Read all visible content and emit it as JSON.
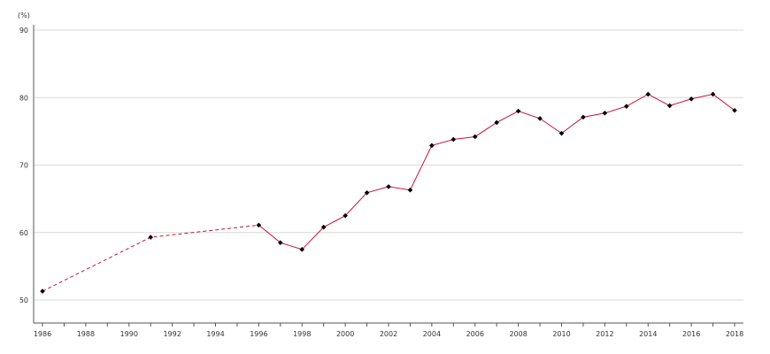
{
  "chart_data": {
    "type": "line",
    "unit_label": "(%)",
    "xlim": [
      1986,
      2018
    ],
    "ylim": [
      46,
      90
    ],
    "x_ticks": [
      1986,
      1988,
      1990,
      1992,
      1994,
      1996,
      1998,
      2000,
      2002,
      2004,
      2006,
      2008,
      2010,
      2012,
      2014,
      2016,
      2018
    ],
    "x_tick_labels": [
      "1986",
      "1988",
      "1990",
      "1992",
      "1994",
      "1996",
      "1998",
      "2000",
      "2002",
      "2004",
      "2006",
      "2008",
      "2010",
      "2012",
      "2014",
      "2016",
      "2018"
    ],
    "y_ticks": [
      50,
      60,
      70,
      80,
      90
    ],
    "y_tick_labels": [
      "50",
      "60",
      "70",
      "80",
      "90"
    ],
    "grid": "horizontal",
    "series": [
      {
        "x": [
          1986,
          1991,
          1996,
          1997,
          1998,
          1999,
          2000,
          2001,
          2002,
          2003,
          2004,
          2005,
          2006,
          2007,
          2008,
          2009,
          2010,
          2011,
          2012,
          2013,
          2014,
          2015,
          2016,
          2017,
          2018
        ],
        "values": [
          51.3,
          59.3,
          61.1,
          58.5,
          57.5,
          60.8,
          62.5,
          65.9,
          66.8,
          66.3,
          72.9,
          73.8,
          74.2,
          76.3,
          78.0,
          76.9,
          74.7,
          77.1,
          77.7,
          78.7,
          80.5,
          78.8,
          79.8,
          80.5,
          78.1
        ],
        "dashed_through": 1996
      }
    ],
    "colors": {
      "line": "#c8103e",
      "marker": "#000000",
      "grid": "#d9d9d9",
      "axis": "#555555"
    }
  }
}
